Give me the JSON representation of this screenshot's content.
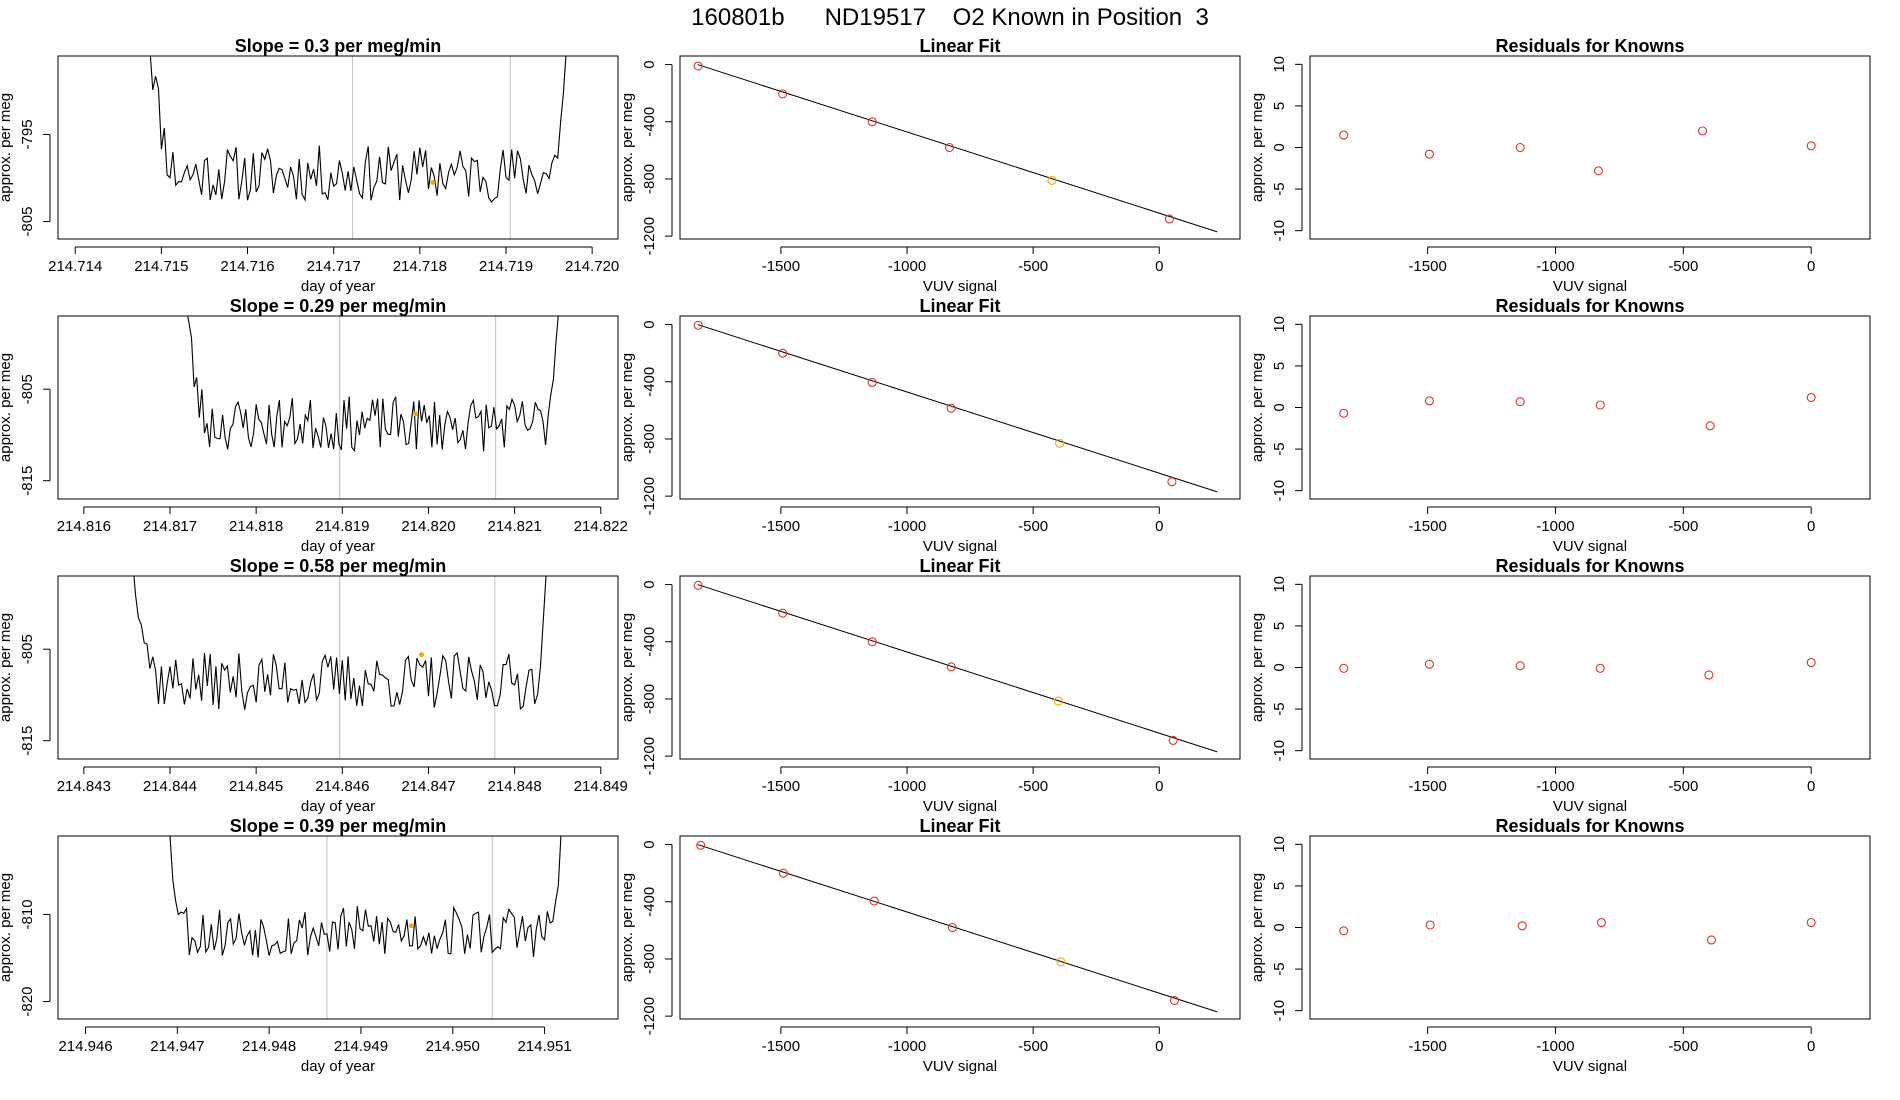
{
  "figure": {
    "suptitle": "160801b      ND19517    O2 Known in Position  3"
  },
  "colors": {
    "trace": "#000000",
    "frame": "#000000",
    "vline": "#bfbfbf",
    "highlight": "#ffa500",
    "residual_point": "#e03030",
    "fit_point": "#e03030"
  },
  "chart_data": [
    {
      "type": "line",
      "title": "Slope =  0.3  per meg/min",
      "xlabel": "day of year",
      "ylabel": "approx. per meg",
      "xlim": [
        214.7138,
        214.7203
      ],
      "ylim": [
        -807,
        -786
      ],
      "x_ticks": [
        214.714,
        214.715,
        214.716,
        214.717,
        214.718,
        214.719,
        214.72
      ],
      "x_tick_labels": [
        "214.714",
        "214.715",
        "214.716",
        "214.717",
        "214.718",
        "214.719",
        "214.720"
      ],
      "y_ticks": [
        -795,
        -805
      ],
      "y_tick_labels": [
        "-795",
        "-805"
      ],
      "vlines": [
        214.71722,
        214.71905
      ],
      "trace_range": [
        214.7148,
        214.7198
      ],
      "baseline": -799.5,
      "noise": 2.6,
      "seed": 11,
      "highlight": {
        "x": 214.71815,
        "y": -800.5
      }
    },
    {
      "type": "scatter",
      "title": "Linear Fit",
      "xlabel": "VUV signal",
      "ylabel": "approx. per meg",
      "xlim": [
        -1900,
        320
      ],
      "ylim": [
        -1220,
        60
      ],
      "x_ticks": [
        -1500,
        -1000,
        -500,
        0
      ],
      "x_tick_labels": [
        "-1500",
        "-1000",
        "-500",
        "0"
      ],
      "y_ticks": [
        0,
        -400,
        -800,
        -1200
      ],
      "y_tick_labels": [
        "0",
        "-400",
        "-800",
        "-1200"
      ],
      "fit_line": {
        "x0": -1830,
        "y0": 0,
        "x1": 230,
        "y1": -1170
      },
      "points": [
        {
          "x": -1828,
          "y": -10
        },
        {
          "x": -1493,
          "y": -205
        },
        {
          "x": -1138,
          "y": -400
        },
        {
          "x": -832,
          "y": -580
        },
        {
          "x": -425,
          "y": -810
        },
        {
          "x": 40,
          "y": -1080
        }
      ],
      "highlight_index": 4
    },
    {
      "type": "scatter",
      "title": "Residuals for Knowns",
      "xlabel": "VUV signal",
      "ylabel": "approx. per meg",
      "xlim": [
        -1960,
        230
      ],
      "ylim": [
        -11,
        11
      ],
      "x_ticks": [
        -1500,
        -1000,
        -500,
        0
      ],
      "x_tick_labels": [
        "-1500",
        "-1000",
        "-500",
        "0"
      ],
      "y_ticks": [
        10,
        5,
        0,
        -5,
        -10
      ],
      "y_tick_labels": [
        "10",
        "5",
        "0",
        "-5",
        "-10"
      ],
      "points": [
        {
          "x": -1828,
          "y": 1.5
        },
        {
          "x": -1493,
          "y": -0.8
        },
        {
          "x": -1138,
          "y": 0.0
        },
        {
          "x": -832,
          "y": -2.8
        },
        {
          "x": -425,
          "y": 2.0
        },
        {
          "x": 0,
          "y": 0.2
        }
      ]
    },
    {
      "type": "line",
      "title": "Slope =  0.29  per meg/min",
      "xlabel": "day of year",
      "ylabel": "approx. per meg",
      "xlim": [
        214.8157,
        214.8222
      ],
      "ylim": [
        -817,
        -797
      ],
      "x_ticks": [
        214.816,
        214.817,
        214.818,
        214.819,
        214.82,
        214.821,
        214.822
      ],
      "x_tick_labels": [
        "214.816",
        "214.817",
        "214.818",
        "214.819",
        "214.820",
        "214.821",
        "214.822"
      ],
      "y_ticks": [
        -805,
        -815
      ],
      "y_tick_labels": [
        "-805",
        "-815"
      ],
      "vlines": [
        214.81897,
        214.82078
      ],
      "trace_range": [
        214.8171,
        214.8216
      ],
      "baseline": -808.8,
      "noise": 2.4,
      "seed": 23,
      "highlight": {
        "x": 214.81985,
        "y": -807.7
      }
    },
    {
      "type": "scatter",
      "title": "Linear Fit",
      "xlabel": "VUV signal",
      "ylabel": "approx. per meg",
      "xlim": [
        -1900,
        320
      ],
      "ylim": [
        -1220,
        60
      ],
      "x_ticks": [
        -1500,
        -1000,
        -500,
        0
      ],
      "x_tick_labels": [
        "-1500",
        "-1000",
        "-500",
        "0"
      ],
      "y_ticks": [
        0,
        -400,
        -800,
        -1200
      ],
      "y_tick_labels": [
        "0",
        "-400",
        "-800",
        "-1200"
      ],
      "fit_line": {
        "x0": -1830,
        "y0": 0,
        "x1": 230,
        "y1": -1170
      },
      "points": [
        {
          "x": -1828,
          "y": -5
        },
        {
          "x": -1493,
          "y": -200
        },
        {
          "x": -1138,
          "y": -405
        },
        {
          "x": -825,
          "y": -585
        },
        {
          "x": -395,
          "y": -830
        },
        {
          "x": 50,
          "y": -1100
        }
      ],
      "highlight_index": 4
    },
    {
      "type": "scatter",
      "title": "Residuals for Knowns",
      "xlabel": "VUV signal",
      "ylabel": "approx. per meg",
      "xlim": [
        -1960,
        230
      ],
      "ylim": [
        -11,
        11
      ],
      "x_ticks": [
        -1500,
        -1000,
        -500,
        0
      ],
      "x_tick_labels": [
        "-1500",
        "-1000",
        "-500",
        "0"
      ],
      "y_ticks": [
        10,
        5,
        0,
        -5,
        -10
      ],
      "y_tick_labels": [
        "10",
        "5",
        "0",
        "-5",
        "-10"
      ],
      "points": [
        {
          "x": -1828,
          "y": -0.7
        },
        {
          "x": -1493,
          "y": 0.8
        },
        {
          "x": -1138,
          "y": 0.7
        },
        {
          "x": -825,
          "y": 0.3
        },
        {
          "x": -395,
          "y": -2.2
        },
        {
          "x": 0,
          "y": 1.2
        }
      ]
    },
    {
      "type": "line",
      "title": "Slope =  0.58  per meg/min",
      "xlabel": "day of year",
      "ylabel": "approx. per meg",
      "xlim": [
        214.8427,
        214.8492
      ],
      "ylim": [
        -817,
        -797
      ],
      "x_ticks": [
        214.843,
        214.844,
        214.845,
        214.846,
        214.847,
        214.848,
        214.849
      ],
      "x_tick_labels": [
        "214.843",
        "214.844",
        "214.845",
        "214.846",
        "214.847",
        "214.848",
        "214.849"
      ],
      "y_ticks": [
        -805,
        -815
      ],
      "y_tick_labels": [
        "-805",
        "-815"
      ],
      "vlines": [
        214.84597,
        214.84777
      ],
      "trace_range": [
        214.8435,
        214.8485
      ],
      "baseline": -808.5,
      "noise": 2.5,
      "seed": 37,
      "highlight": {
        "x": 214.84692,
        "y": -805.6
      }
    },
    {
      "type": "scatter",
      "title": "Linear Fit",
      "xlabel": "VUV signal",
      "ylabel": "approx. per meg",
      "xlim": [
        -1900,
        320
      ],
      "ylim": [
        -1220,
        60
      ],
      "x_ticks": [
        -1500,
        -1000,
        -500,
        0
      ],
      "x_tick_labels": [
        "-1500",
        "-1000",
        "-500",
        "0"
      ],
      "y_ticks": [
        0,
        -400,
        -800,
        -1200
      ],
      "y_tick_labels": [
        "0",
        "-400",
        "-800",
        "-1200"
      ],
      "fit_line": {
        "x0": -1830,
        "y0": 0,
        "x1": 230,
        "y1": -1170
      },
      "points": [
        {
          "x": -1828,
          "y": -5
        },
        {
          "x": -1493,
          "y": -200
        },
        {
          "x": -1138,
          "y": -400
        },
        {
          "x": -825,
          "y": -575
        },
        {
          "x": -400,
          "y": -815
        },
        {
          "x": 55,
          "y": -1090
        }
      ],
      "highlight_index": 4
    },
    {
      "type": "scatter",
      "title": "Residuals for Knowns",
      "xlabel": "VUV signal",
      "ylabel": "approx. per meg",
      "xlim": [
        -1960,
        230
      ],
      "ylim": [
        -11,
        11
      ],
      "x_ticks": [
        -1500,
        -1000,
        -500,
        0
      ],
      "x_tick_labels": [
        "-1500",
        "-1000",
        "-500",
        "0"
      ],
      "y_ticks": [
        10,
        5,
        0,
        -5,
        -10
      ],
      "y_tick_labels": [
        "10",
        "5",
        "0",
        "-5",
        "-10"
      ],
      "points": [
        {
          "x": -1828,
          "y": -0.1
        },
        {
          "x": -1493,
          "y": 0.4
        },
        {
          "x": -1138,
          "y": 0.2
        },
        {
          "x": -825,
          "y": -0.1
        },
        {
          "x": -400,
          "y": -0.9
        },
        {
          "x": 0,
          "y": 0.6
        }
      ]
    },
    {
      "type": "line",
      "title": "Slope =  0.39  per meg/min",
      "xlabel": "day of year",
      "ylabel": "approx. per meg",
      "xlim": [
        214.9457,
        214.9518
      ],
      "ylim": [
        -822,
        -801
      ],
      "x_ticks": [
        214.946,
        214.947,
        214.948,
        214.949,
        214.95,
        214.951
      ],
      "x_tick_labels": [
        "214.946",
        "214.947",
        "214.948",
        "214.949",
        "214.950",
        "214.951"
      ],
      "y_ticks": [
        -810,
        -820
      ],
      "y_tick_labels": [
        "-810",
        "-820"
      ],
      "vlines": [
        214.94863,
        214.95043
      ],
      "trace_range": [
        214.9468,
        214.9513
      ],
      "baseline": -812.0,
      "noise": 2.4,
      "seed": 53,
      "highlight": {
        "x": 214.94955,
        "y": -811.3
      }
    },
    {
      "type": "scatter",
      "title": "Linear Fit",
      "xlabel": "VUV signal",
      "ylabel": "approx. per meg",
      "xlim": [
        -1900,
        320
      ],
      "ylim": [
        -1220,
        60
      ],
      "x_ticks": [
        -1500,
        -1000,
        -500,
        0
      ],
      "x_tick_labels": [
        "-1500",
        "-1000",
        "-500",
        "0"
      ],
      "y_ticks": [
        0,
        -400,
        -800,
        -1200
      ],
      "y_tick_labels": [
        "0",
        "-400",
        "-800",
        "-1200"
      ],
      "fit_line": {
        "x0": -1830,
        "y0": 0,
        "x1": 230,
        "y1": -1170
      },
      "points": [
        {
          "x": -1818,
          "y": -5
        },
        {
          "x": -1490,
          "y": -200
        },
        {
          "x": -1130,
          "y": -395
        },
        {
          "x": -820,
          "y": -580
        },
        {
          "x": -390,
          "y": -820
        },
        {
          "x": 60,
          "y": -1090
        }
      ],
      "highlight_index": 4
    },
    {
      "type": "scatter",
      "title": "Residuals for Knowns",
      "xlabel": "VUV signal",
      "ylabel": "approx. per meg",
      "xlim": [
        -1960,
        230
      ],
      "ylim": [
        -11,
        11
      ],
      "x_ticks": [
        -1500,
        -1000,
        -500,
        0
      ],
      "x_tick_labels": [
        "-1500",
        "-1000",
        "-500",
        "0"
      ],
      "y_ticks": [
        10,
        5,
        0,
        -5,
        -10
      ],
      "y_tick_labels": [
        "10",
        "5",
        "0",
        "-5",
        "-10"
      ],
      "points": [
        {
          "x": -1828,
          "y": -0.4
        },
        {
          "x": -1490,
          "y": 0.3
        },
        {
          "x": -1130,
          "y": 0.2
        },
        {
          "x": -820,
          "y": 0.6
        },
        {
          "x": -390,
          "y": -1.5
        },
        {
          "x": 0,
          "y": 0.6
        }
      ]
    }
  ]
}
